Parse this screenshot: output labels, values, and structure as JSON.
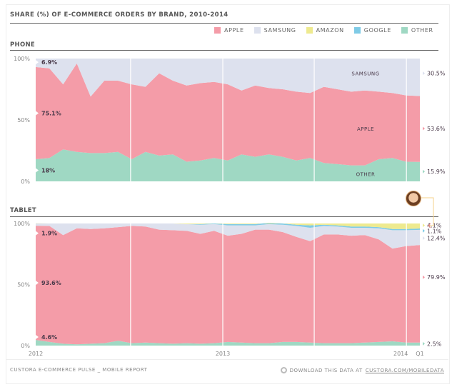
{
  "title": "SHARE (%) OF E-COMMERCE ORDERS BY BRAND, 2010-2014",
  "legend": [
    {
      "label": "APPLE",
      "color": "#f49ca8"
    },
    {
      "label": "SAMSUNG",
      "color": "#dde1ee"
    },
    {
      "label": "AMAZON",
      "color": "#eeea8f"
    },
    {
      "label": "GOOGLE",
      "color": "#7fcbe6"
    },
    {
      "label": "OTHER",
      "color": "#9fd8c3"
    }
  ],
  "footer": {
    "source": "CUSTORA E-COMMERCE PULSE _ MOBILE REPORT",
    "download_prefix": "DOWNLOAD THIS DATA AT",
    "download_link": "CUSTORA.COM/MOBILEDATA"
  },
  "chart_data": [
    {
      "type": "area",
      "stacked": true,
      "normalized": true,
      "title": "PHONE",
      "ylabel": "",
      "xlabel": "",
      "ylim": [
        0,
        100
      ],
      "yticks": [
        "0%",
        "50%",
        "100%"
      ],
      "xticks": [],
      "grid": false,
      "inline_labels": [
        "SAMSUNG",
        "APPLE",
        "OTHER"
      ],
      "start_annotations": [
        {
          "series": "SAMSUNG",
          "label": "6.9%"
        },
        {
          "series": "APPLE",
          "label": "75.1%"
        },
        {
          "series": "OTHER",
          "label": "18%"
        }
      ],
      "end_annotations": [
        {
          "series": "SAMSUNG",
          "label": "30.5%"
        },
        {
          "series": "APPLE",
          "label": "53.6%"
        },
        {
          "series": "OTHER",
          "label": "15.9%"
        }
      ],
      "series": [
        {
          "name": "OTHER",
          "values": [
            18,
            19,
            26,
            24,
            23,
            23,
            24,
            18,
            24,
            21,
            22,
            16,
            17,
            19,
            17,
            22,
            20,
            22,
            20,
            17,
            19,
            15,
            14,
            13,
            13,
            18,
            19,
            16,
            15.9
          ]
        },
        {
          "name": "APPLE",
          "values": [
            75.1,
            73,
            53,
            72,
            46,
            59,
            58,
            61,
            53,
            67,
            60,
            62,
            63,
            62,
            62,
            52,
            58,
            54,
            55,
            56,
            53,
            62,
            61,
            60,
            61,
            55,
            53,
            54,
            53.6
          ]
        },
        {
          "name": "SAMSUNG",
          "values": [
            6.9,
            8,
            21,
            4,
            31,
            18,
            18,
            21,
            23,
            12,
            18,
            22,
            20,
            19,
            21,
            26,
            22,
            24,
            25,
            27,
            28,
            23,
            25,
            27,
            26,
            27,
            28,
            30,
            30.5
          ]
        }
      ]
    },
    {
      "type": "area",
      "stacked": true,
      "normalized": true,
      "title": "TABLET",
      "ylabel": "",
      "xlabel": "",
      "ylim": [
        0,
        100
      ],
      "yticks": [
        "0%",
        "50%",
        "100%"
      ],
      "xticks": [
        "2012",
        "2013",
        "2014",
        "Q1"
      ],
      "grid": false,
      "start_annotations": [
        {
          "series": "SAMSUNG",
          "label": "1.9%"
        },
        {
          "series": "APPLE",
          "label": "93.6%"
        },
        {
          "series": "OTHER",
          "label": "4.6%"
        }
      ],
      "end_annotations": [
        {
          "series": "AMAZON",
          "label": "4.1%"
        },
        {
          "series": "GOOGLE",
          "label": "1.1%"
        },
        {
          "series": "SAMSUNG",
          "label": "12.4%"
        },
        {
          "series": "APPLE",
          "label": "79.9%"
        },
        {
          "series": "OTHER",
          "label": "2.5%"
        }
      ],
      "series": [
        {
          "name": "OTHER",
          "values": [
            4.6,
            3,
            1.5,
            1,
            1.5,
            2,
            4,
            2,
            2.5,
            2,
            1.5,
            2,
            1.5,
            2,
            3,
            2.5,
            2,
            2,
            3,
            3,
            2.5,
            2,
            2,
            2,
            2.5,
            3,
            3.5,
            2.5,
            2.5
          ]
        },
        {
          "name": "APPLE",
          "values": [
            93.6,
            95,
            89,
            95,
            94,
            94,
            93,
            96,
            95,
            93,
            93,
            92,
            90,
            92,
            87,
            89,
            93,
            93,
            90,
            86,
            83,
            89,
            89,
            88,
            88,
            84,
            76,
            79,
            79.9
          ]
        },
        {
          "name": "SAMSUNG",
          "values": [
            1.9,
            2,
            9.5,
            4,
            4.5,
            4,
            3,
            2,
            2.5,
            5,
            5.5,
            5.5,
            7.5,
            5.5,
            8.5,
            7,
            3.5,
            4.5,
            6,
            9,
            11,
            7,
            6.5,
            6.5,
            6,
            9,
            15,
            13,
            12.4
          ]
        },
        {
          "name": "GOOGLE",
          "values": [
            0,
            0,
            0,
            0,
            0,
            0,
            0,
            0,
            0,
            0,
            0,
            0,
            0.5,
            0.5,
            1,
            1,
            1,
            1,
            1,
            1,
            2,
            1,
            1,
            1,
            1,
            1,
            1,
            1,
            1.1
          ]
        },
        {
          "name": "AMAZON",
          "values": [
            0,
            0,
            0,
            0,
            0,
            0,
            0,
            0,
            0,
            0,
            0,
            0.5,
            0.5,
            0,
            0.5,
            0.5,
            0.5,
            0.5,
            0,
            1,
            1.5,
            1,
            1,
            2.5,
            2.5,
            3,
            4.5,
            4.5,
            4.1
          ]
        }
      ]
    }
  ]
}
